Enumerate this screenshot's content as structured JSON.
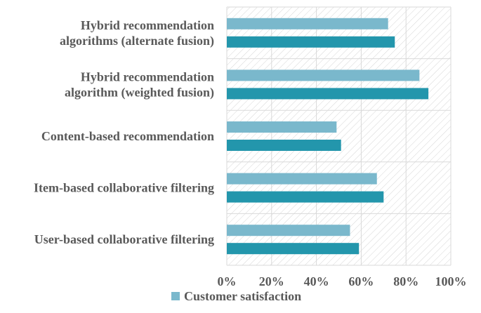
{
  "chart_data": {
    "type": "bar",
    "orientation": "horizontal",
    "categories": [
      "Hybrid recommendation algorithms (alternate fusion)",
      "Hybrid recommendation algorithm (weighted fusion)",
      "Content-based recommendation",
      "Item-based collaborative filtering",
      "User-based collaborative filtering"
    ],
    "category_label_lines": [
      [
        "Hybrid recommendation",
        "algorithms (alternate fusion)"
      ],
      [
        "Hybrid recommendation",
        "algorithm (weighted fusion)"
      ],
      [
        "Content-based recommendation"
      ],
      [
        "Item-based collaborative filtering"
      ],
      [
        "User-based collaborative filtering"
      ]
    ],
    "series": [
      {
        "name": "Customer satisfaction",
        "color": "#7ab8cc",
        "values": [
          72,
          86,
          49,
          67,
          55
        ]
      },
      {
        "color": "#2396ac",
        "values": [
          75,
          90,
          51,
          70,
          59
        ]
      }
    ],
    "x_ticks": [
      "0%",
      "20%",
      "40%",
      "60%",
      "80%",
      "100%"
    ],
    "xlim": [
      0,
      100
    ],
    "grid": true,
    "legend_position": "bottom-left",
    "title": "",
    "xlabel": "",
    "ylabel": ""
  }
}
